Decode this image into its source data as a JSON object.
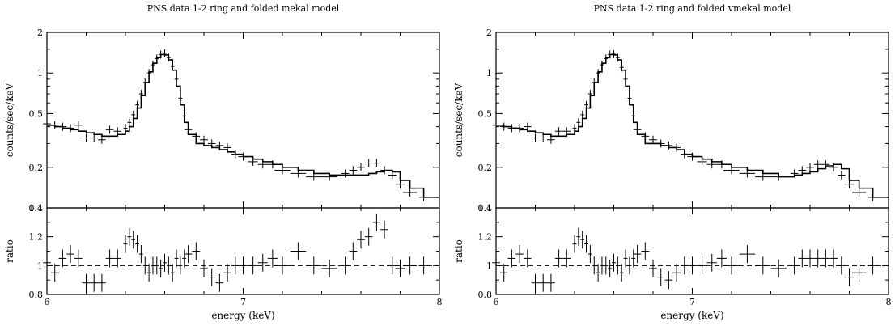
{
  "chart_data": [
    {
      "type": "line",
      "title": "PNS data 1-2 ring and folded mekal model",
      "xlabel": "energy (keV)",
      "ylabel": "counts/sec/keV",
      "ratio_ylabel": "ratio",
      "xlim": [
        6,
        8
      ],
      "ylim": [
        0.1,
        2
      ],
      "yscale": "log",
      "ratio_ylim": [
        0.8,
        1.4
      ],
      "x_ticks": [
        "6",
        "7",
        "8"
      ],
      "y_ticks": [
        {
          "v": 0.1,
          "label": "0.1"
        },
        {
          "v": 0.2,
          "label": "0.2"
        },
        {
          "v": 0.5,
          "label": "0.5"
        },
        {
          "v": 1,
          "label": "1"
        },
        {
          "v": 2,
          "label": "2"
        }
      ],
      "ratio_ticks": [
        {
          "v": 0.8,
          "label": "0.8"
        },
        {
          "v": 1.0,
          "label": "1"
        },
        {
          "v": 1.2,
          "label": "1.2"
        },
        {
          "v": 1.4,
          "label": "1.4"
        }
      ],
      "data": {
        "x": [
          6.0,
          6.04,
          6.08,
          6.12,
          6.16,
          6.2,
          6.24,
          6.28,
          6.32,
          6.36,
          6.4,
          6.42,
          6.44,
          6.46,
          6.48,
          6.5,
          6.52,
          6.54,
          6.56,
          6.58,
          6.6,
          6.62,
          6.64,
          6.66,
          6.68,
          6.7,
          6.72,
          6.76,
          6.8,
          6.84,
          6.88,
          6.92,
          6.96,
          7.0,
          7.05,
          7.1,
          7.15,
          7.2,
          7.28,
          7.36,
          7.44,
          7.52,
          7.56,
          7.6,
          7.64,
          7.68,
          7.72,
          7.76,
          7.8,
          7.85,
          7.92
        ],
        "y": [
          0.42,
          0.41,
          0.4,
          0.39,
          0.41,
          0.33,
          0.33,
          0.32,
          0.38,
          0.37,
          0.39,
          0.43,
          0.49,
          0.58,
          0.7,
          0.85,
          1.0,
          1.15,
          1.28,
          1.37,
          1.4,
          1.3,
          1.12,
          0.9,
          0.65,
          0.48,
          0.38,
          0.34,
          0.32,
          0.3,
          0.29,
          0.28,
          0.25,
          0.24,
          0.22,
          0.21,
          0.21,
          0.19,
          0.18,
          0.17,
          0.17,
          0.18,
          0.19,
          0.2,
          0.215,
          0.215,
          0.19,
          0.175,
          0.15,
          0.13,
          0.12
        ]
      },
      "model": {
        "x": [
          6.0,
          6.04,
          6.08,
          6.12,
          6.16,
          6.2,
          6.24,
          6.28,
          6.32,
          6.36,
          6.4,
          6.42,
          6.44,
          6.46,
          6.48,
          6.5,
          6.52,
          6.54,
          6.56,
          6.58,
          6.6,
          6.62,
          6.64,
          6.66,
          6.68,
          6.7,
          6.72,
          6.76,
          6.8,
          6.84,
          6.88,
          6.92,
          6.96,
          7.0,
          7.05,
          7.1,
          7.15,
          7.2,
          7.28,
          7.36,
          7.44,
          7.52,
          7.56,
          7.6,
          7.64,
          7.68,
          7.72,
          7.76,
          7.8,
          7.85,
          7.92,
          7.97
        ],
        "y": [
          0.41,
          0.4,
          0.39,
          0.38,
          0.37,
          0.36,
          0.35,
          0.34,
          0.34,
          0.35,
          0.37,
          0.4,
          0.46,
          0.55,
          0.68,
          0.85,
          1.02,
          1.18,
          1.3,
          1.37,
          1.36,
          1.25,
          1.05,
          0.8,
          0.58,
          0.43,
          0.35,
          0.3,
          0.29,
          0.28,
          0.27,
          0.26,
          0.25,
          0.24,
          0.23,
          0.22,
          0.21,
          0.2,
          0.19,
          0.18,
          0.175,
          0.175,
          0.175,
          0.175,
          0.18,
          0.185,
          0.19,
          0.185,
          0.16,
          0.14,
          0.12,
          0.12
        ]
      },
      "ratio": [
        1.02,
        0.95,
        1.05,
        1.08,
        1.05,
        0.88,
        0.88,
        0.88,
        1.05,
        1.05,
        1.15,
        1.2,
        1.18,
        1.15,
        1.08,
        1.0,
        0.95,
        1.0,
        1.0,
        0.98,
        1.02,
        1.0,
        0.95,
        1.05,
        1.0,
        1.05,
        1.08,
        1.1,
        0.98,
        0.92,
        0.88,
        0.95,
        1.0,
        1.0,
        1.0,
        1.02,
        1.05,
        1.0,
        1.1,
        1.0,
        0.98,
        1.0,
        1.1,
        1.18,
        1.2,
        1.3,
        1.25,
        1.0,
        0.98,
        1.0,
        1.0
      ],
      "ratio_x": [
        6.0,
        6.04,
        6.08,
        6.12,
        6.16,
        6.2,
        6.24,
        6.28,
        6.32,
        6.36,
        6.4,
        6.42,
        6.44,
        6.46,
        6.48,
        6.5,
        6.52,
        6.54,
        6.56,
        6.58,
        6.6,
        6.62,
        6.64,
        6.66,
        6.68,
        6.7,
        6.72,
        6.76,
        6.8,
        6.84,
        6.88,
        6.92,
        6.96,
        7.0,
        7.05,
        7.1,
        7.15,
        7.2,
        7.28,
        7.36,
        7.44,
        7.52,
        7.56,
        7.6,
        7.64,
        7.68,
        7.72,
        7.76,
        7.8,
        7.85,
        7.92
      ]
    },
    {
      "type": "line",
      "title": "PNS data 1-2 ring and folded vmekal model",
      "xlabel": "energy (keV)",
      "ylabel": "counts/sec/keV",
      "ratio_ylabel": "ratio",
      "xlim": [
        6,
        8
      ],
      "ylim": [
        0.1,
        2
      ],
      "yscale": "log",
      "ratio_ylim": [
        0.8,
        1.4
      ],
      "x_ticks": [
        "6",
        "7",
        "8"
      ],
      "y_ticks": [
        {
          "v": 0.1,
          "label": "0.1"
        },
        {
          "v": 0.2,
          "label": "0.2"
        },
        {
          "v": 0.5,
          "label": "0.5"
        },
        {
          "v": 1,
          "label": "1"
        },
        {
          "v": 2,
          "label": "2"
        }
      ],
      "ratio_ticks": [
        {
          "v": 0.8,
          "label": "0.8"
        },
        {
          "v": 1.0,
          "label": "1"
        },
        {
          "v": 1.2,
          "label": "1.2"
        },
        {
          "v": 1.4,
          "label": "1.4"
        }
      ],
      "data": {
        "x": [
          6.0,
          6.04,
          6.08,
          6.12,
          6.16,
          6.2,
          6.24,
          6.28,
          6.32,
          6.36,
          6.4,
          6.42,
          6.44,
          6.46,
          6.48,
          6.5,
          6.52,
          6.54,
          6.56,
          6.58,
          6.6,
          6.62,
          6.64,
          6.66,
          6.68,
          6.7,
          6.72,
          6.76,
          6.8,
          6.84,
          6.88,
          6.92,
          6.96,
          7.0,
          7.05,
          7.1,
          7.15,
          7.2,
          7.28,
          7.36,
          7.44,
          7.52,
          7.56,
          7.6,
          7.64,
          7.68,
          7.72,
          7.76,
          7.8,
          7.85,
          7.92
        ],
        "y": [
          0.41,
          0.4,
          0.39,
          0.39,
          0.4,
          0.33,
          0.33,
          0.32,
          0.37,
          0.37,
          0.39,
          0.43,
          0.49,
          0.58,
          0.7,
          0.85,
          1.0,
          1.15,
          1.28,
          1.37,
          1.38,
          1.3,
          1.1,
          0.9,
          0.65,
          0.48,
          0.38,
          0.34,
          0.32,
          0.3,
          0.29,
          0.28,
          0.25,
          0.24,
          0.22,
          0.21,
          0.21,
          0.19,
          0.18,
          0.17,
          0.17,
          0.18,
          0.19,
          0.2,
          0.21,
          0.21,
          0.2,
          0.175,
          0.15,
          0.13,
          0.12
        ]
      },
      "model": {
        "x": [
          6.0,
          6.04,
          6.08,
          6.12,
          6.16,
          6.2,
          6.24,
          6.28,
          6.32,
          6.36,
          6.4,
          6.42,
          6.44,
          6.46,
          6.48,
          6.5,
          6.52,
          6.54,
          6.56,
          6.58,
          6.6,
          6.62,
          6.64,
          6.66,
          6.68,
          6.7,
          6.72,
          6.76,
          6.8,
          6.84,
          6.88,
          6.92,
          6.96,
          7.0,
          7.05,
          7.1,
          7.15,
          7.2,
          7.28,
          7.36,
          7.44,
          7.52,
          7.56,
          7.6,
          7.64,
          7.68,
          7.72,
          7.76,
          7.8,
          7.85,
          7.92,
          7.97
        ],
        "y": [
          0.41,
          0.4,
          0.39,
          0.38,
          0.37,
          0.36,
          0.35,
          0.34,
          0.34,
          0.35,
          0.37,
          0.4,
          0.46,
          0.55,
          0.68,
          0.85,
          1.02,
          1.18,
          1.3,
          1.37,
          1.36,
          1.25,
          1.05,
          0.8,
          0.58,
          0.43,
          0.35,
          0.3,
          0.3,
          0.29,
          0.28,
          0.27,
          0.25,
          0.24,
          0.23,
          0.22,
          0.21,
          0.2,
          0.19,
          0.18,
          0.17,
          0.175,
          0.18,
          0.185,
          0.195,
          0.205,
          0.21,
          0.195,
          0.16,
          0.14,
          0.12,
          0.12
        ]
      },
      "ratio": [
        1.02,
        0.95,
        1.05,
        1.08,
        1.05,
        0.88,
        0.88,
        0.88,
        1.05,
        1.05,
        1.15,
        1.2,
        1.18,
        1.15,
        1.08,
        1.0,
        0.95,
        1.0,
        1.0,
        0.98,
        1.02,
        1.0,
        0.95,
        1.05,
        1.0,
        1.05,
        1.08,
        1.1,
        0.98,
        0.92,
        0.9,
        0.95,
        1.0,
        1.0,
        1.0,
        1.02,
        1.05,
        1.0,
        1.08,
        1.0,
        0.98,
        1.0,
        1.05,
        1.05,
        1.05,
        1.05,
        1.05,
        1.0,
        0.92,
        0.95,
        1.0
      ],
      "ratio_x": [
        6.0,
        6.04,
        6.08,
        6.12,
        6.16,
        6.2,
        6.24,
        6.28,
        6.32,
        6.36,
        6.4,
        6.42,
        6.44,
        6.46,
        6.48,
        6.5,
        6.52,
        6.54,
        6.56,
        6.58,
        6.6,
        6.62,
        6.64,
        6.66,
        6.68,
        6.7,
        6.72,
        6.76,
        6.8,
        6.84,
        6.88,
        6.92,
        6.96,
        7.0,
        7.05,
        7.1,
        7.15,
        7.2,
        7.28,
        7.36,
        7.44,
        7.52,
        7.56,
        7.6,
        7.64,
        7.68,
        7.72,
        7.76,
        7.8,
        7.85,
        7.92
      ]
    }
  ]
}
